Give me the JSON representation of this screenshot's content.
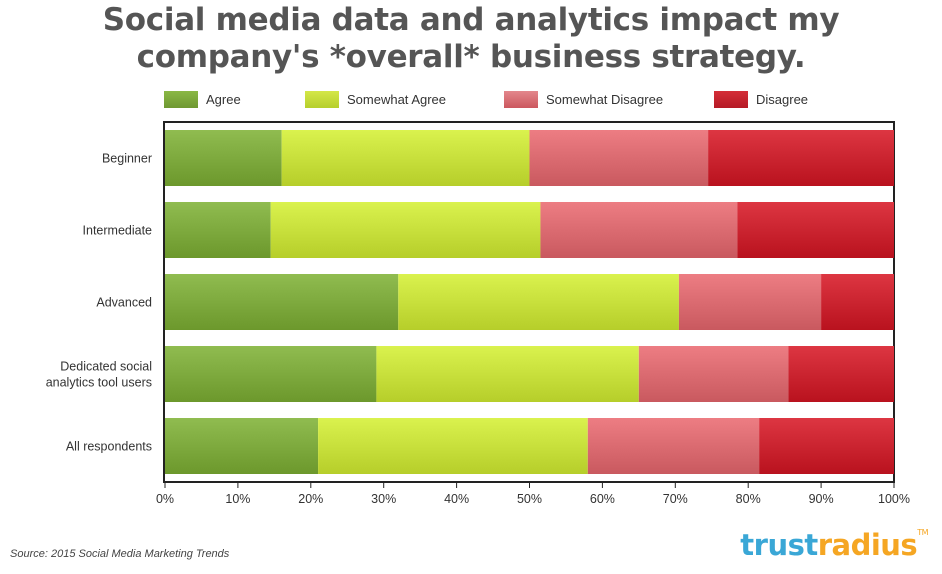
{
  "title_line1": "Social media data and analytics impact my",
  "title_line2": "company's *overall* business strategy.",
  "source": "Source: 2015 Social Media Marketing Trends",
  "brand": {
    "part1": "trust",
    "part2": "radius",
    "tm": "TM"
  },
  "colors": {
    "agree": "#7aa63a",
    "somewhat_agree": "#c4dc38",
    "somewhat_disagree": "#d7676d",
    "disagree": "#c7202c"
  },
  "chart_data": {
    "type": "bar",
    "orientation": "horizontal",
    "stacked": true,
    "title": "Social media data and analytics impact my company's *overall* business strategy.",
    "categories": [
      "Beginner",
      "Intermediate",
      "Advanced",
      "Dedicated social analytics tool users",
      "All respondents"
    ],
    "category_lines": [
      [
        "Beginner"
      ],
      [
        "Intermediate"
      ],
      [
        "Advanced"
      ],
      [
        "Dedicated social",
        "analytics tool users"
      ],
      [
        "All respondents"
      ]
    ],
    "series": [
      {
        "name": "Agree",
        "color": "#7aa63a",
        "values": [
          16,
          14.5,
          32,
          29,
          21
        ]
      },
      {
        "name": "Somewhat Agree",
        "color": "#c4dc38",
        "values": [
          34,
          37,
          38.5,
          36,
          37
        ]
      },
      {
        "name": "Somewhat Disagree",
        "color": "#d7676d",
        "values": [
          24.5,
          27,
          19.5,
          20.5,
          23.5
        ]
      },
      {
        "name": "Disagree",
        "color": "#c7202c",
        "values": [
          25.5,
          21.5,
          10,
          14.5,
          18.5
        ]
      }
    ],
    "xlim": [
      0,
      100
    ],
    "x_ticks": [
      "0%",
      "10%",
      "20%",
      "30%",
      "40%",
      "50%",
      "60%",
      "70%",
      "80%",
      "90%",
      "100%"
    ],
    "legend_position": "top",
    "grid": false
  }
}
